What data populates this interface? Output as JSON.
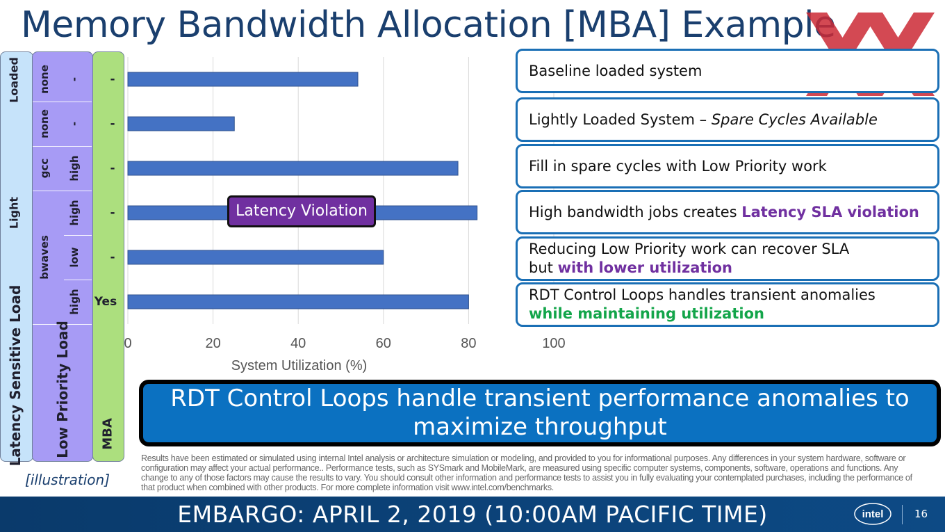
{
  "title": "Memory Bandwidth Allocation [MBA] Example",
  "left_panel": {
    "col1_header": "Latency Sensitive Load",
    "col2_header": "Low Priority Load",
    "col3_header": "MBA",
    "load_groups": [
      "Loaded",
      "Light"
    ],
    "workloads": [
      "none",
      "none",
      "gcc",
      "bwaves"
    ],
    "intensity": [
      "-",
      "-",
      "high",
      "high",
      "low",
      "high"
    ],
    "mba": [
      "-",
      "-",
      "-",
      "-",
      "-",
      "Yes"
    ]
  },
  "chart_data": {
    "type": "bar",
    "orientation": "horizontal",
    "values": [
      54,
      25,
      77.5,
      82,
      60,
      80
    ],
    "xlabel": "System Utilization (%)",
    "xlim": [
      0,
      100
    ],
    "xticks": [
      "0",
      "20",
      "40",
      "60",
      "80",
      "100"
    ],
    "grid": true,
    "bar_color": "#4472c4",
    "annotation": "Latency Violation"
  },
  "boxes": [
    {
      "parts": [
        {
          "t": "Baseline loaded system",
          "s": ""
        }
      ]
    },
    {
      "parts": [
        {
          "t": "Lightly Loaded System – ",
          "s": ""
        },
        {
          "t": "Spare Cycles Available",
          "s": "italic"
        }
      ]
    },
    {
      "parts": [
        {
          "t": "Fill in spare cycles with Low Priority work",
          "s": ""
        }
      ]
    },
    {
      "parts": [
        {
          "t": "High bandwidth jobs creates ",
          "s": ""
        },
        {
          "t": "Latency SLA violation",
          "s": "purple"
        }
      ]
    },
    {
      "parts": [
        {
          "t": "Reducing Low Priority work can recover SLA",
          "s": ""
        },
        {
          "t": "br",
          "s": "br"
        },
        {
          "t": "but ",
          "s": ""
        },
        {
          "t": "with lower utilization",
          "s": "purple"
        }
      ]
    },
    {
      "parts": [
        {
          "t": "RDT Control Loops handles transient anomalies",
          "s": ""
        },
        {
          "t": "br",
          "s": "br"
        },
        {
          "t": "while maintaining utilization",
          "s": "green"
        }
      ]
    }
  ],
  "banner": "RDT Control Loops handle transient performance anomalies to maximize throughput",
  "disclaimer": "Results have been estimated or simulated using internal Intel analysis or architecture simulation or modeling, and provided to you for informational purposes. Any differences in your system hardware, software or configuration may affect your actual performance.. Performance tests, such as SYSmark and MobileMark, are measured using specific computer systems, components, software, operations and functions. Any change to any of those factors may cause the results to vary. You should consult other information and performance tests to assist you in fully evaluating your contemplated purchases, including the performance of that product when combined with other products.   For more complete information visit www.intel.com/benchmarks.",
  "illustration": "[illustration]",
  "footer": {
    "embargo": "EMBARGO: APRIL 2, 2019 (10:00AM PACIFIC TIME)",
    "logo": "intel",
    "page": "16"
  },
  "colors": {
    "title": "#1a3f6e",
    "box_border": "#1a6fb5",
    "purple": "#7030a0",
    "green": "#13a54a",
    "banner": "#0b71c1",
    "xmark": "#cc2a36"
  }
}
